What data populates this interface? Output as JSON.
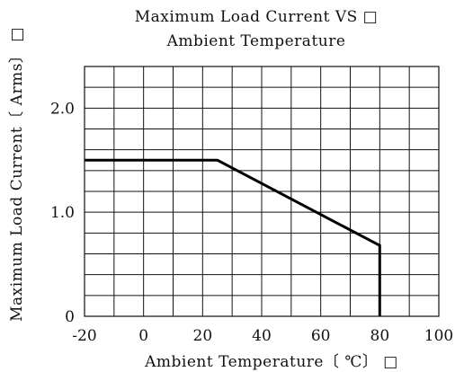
{
  "chart_data": {
    "type": "line",
    "title": [
      "Maximum Load Current VS □",
      "Ambient Temperature"
    ],
    "xlabel": "Ambient Temperature〔 ℃〕 □",
    "ylabel": "Maximum Load Current〔 Arms〕 □",
    "xlim": [
      -20,
      100
    ],
    "ylim": [
      0,
      2.4
    ],
    "x_ticks": [
      -20,
      0,
      20,
      40,
      60,
      80,
      100
    ],
    "x_tick_labels": [
      "-20",
      "0",
      "20",
      "40",
      "60",
      "80",
      "100"
    ],
    "y_ticks": [
      0,
      1.0,
      2.0
    ],
    "y_tick_labels": [
      "0",
      "1.0",
      "2.0"
    ],
    "grid": true,
    "series": [
      {
        "x": [
          -20,
          25,
          80,
          80
        ],
        "y": [
          1.5,
          1.5,
          0.68,
          0
        ]
      }
    ]
  }
}
